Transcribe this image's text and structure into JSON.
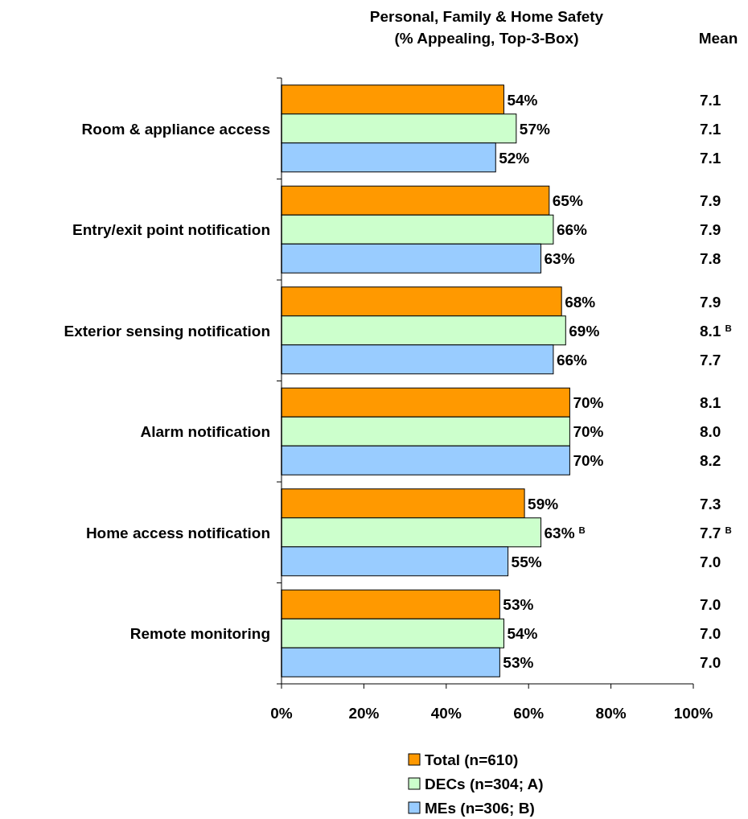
{
  "chart_data": {
    "type": "bar",
    "orientation": "horizontal",
    "title": "Personal, Family & Home Safety\n(% Appealing, Top-3-Box)",
    "categories": [
      "Room & appliance access",
      "Entry/exit point notification",
      "Exterior sensing notification",
      "Alarm notification",
      "Home access notification",
      "Remote monitoring"
    ],
    "series": [
      {
        "name": "Total (n=610)",
        "color": "#ff9900",
        "values": [
          54,
          65,
          68,
          70,
          59,
          53
        ],
        "value_labels": [
          "54%",
          "65%",
          "68%",
          "70%",
          "59%",
          "53%"
        ]
      },
      {
        "name": "DECs (n=304; A)",
        "color": "#ccffcc",
        "values": [
          57,
          66,
          69,
          70,
          63,
          54
        ],
        "value_labels": [
          "57%",
          "66%",
          "69%",
          "70%",
          "63%$^{B}$",
          "54%"
        ]
      },
      {
        "name": "MEs (n=306; B)",
        "color": "#99ccff",
        "values": [
          52,
          63,
          66,
          70,
          55,
          53
        ],
        "value_labels": [
          "52%",
          "63%",
          "66%",
          "70%",
          "55%",
          "53%"
        ]
      }
    ],
    "xlim": [
      0,
      100
    ],
    "xticks": [
      {
        "value": 0,
        "label": "0%"
      },
      {
        "value": 20,
        "label": "20%"
      },
      {
        "value": 40,
        "label": "40%"
      },
      {
        "value": 60,
        "label": "60%"
      },
      {
        "value": 80,
        "label": "80%"
      },
      {
        "value": 100,
        "label": "100%"
      }
    ],
    "annotations": [
      "Mean",
      "7.1",
      "7.1",
      "7.1",
      "7.9",
      "7.9",
      "7.8",
      "7.9",
      "8.1$^{B}$",
      "7.7",
      "8.1",
      "8.0",
      "8.2",
      "7.3",
      "7.7$^{B}$",
      "7.0",
      "7.0",
      "7.0",
      "7.0"
    ],
    "legend": "bottom",
    "grid": false
  }
}
